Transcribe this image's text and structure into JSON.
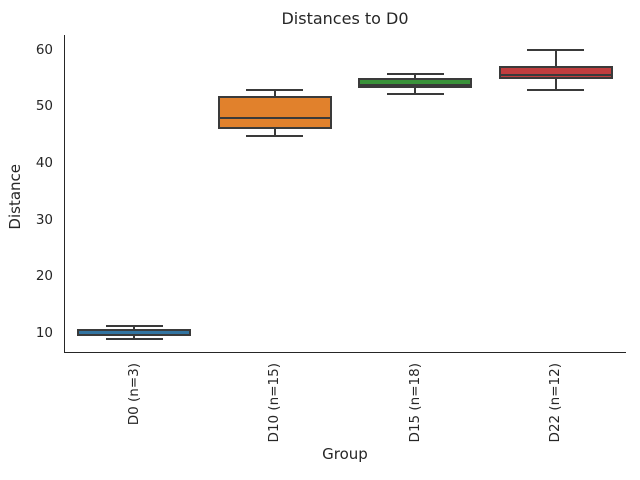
{
  "chart_data": {
    "type": "box",
    "title": "Distances to D0",
    "xlabel": "Group",
    "ylabel": "Distance",
    "ylim": [
      6.5,
      62.7
    ],
    "yticks": [
      10,
      20,
      30,
      40,
      50,
      60
    ],
    "grid": false,
    "legend": "none",
    "categories": [
      "D0 (n=3)",
      "D10 (n=15)",
      "D15 (n=18)",
      "D22 (n=12)"
    ],
    "series": [
      {
        "name": "D0 (n=3)",
        "n": 3,
        "color": "#3274A1",
        "whisker_low": 9.0,
        "q1": 9.5,
        "median": 10.1,
        "q3": 10.7,
        "whisker_high": 11.3
      },
      {
        "name": "D10 (n=15)",
        "n": 15,
        "color": "#E1812C",
        "whisker_low": 44.8,
        "q1": 46.0,
        "median": 48.0,
        "q3": 51.9,
        "whisker_high": 52.9
      },
      {
        "name": "D15 (n=18)",
        "n": 18,
        "color": "#3A923A",
        "whisker_low": 52.3,
        "q1": 53.4,
        "median": 53.9,
        "q3": 55.1,
        "whisker_high": 55.8
      },
      {
        "name": "D22 (n=12)",
        "n": 12,
        "color": "#C03D3E",
        "whisker_low": 53.0,
        "q1": 54.9,
        "median": 55.7,
        "q3": 57.3,
        "whisker_high": 60.0
      }
    ],
    "colors": {
      "box_edge": "#3A3A3A",
      "spine": "#262626",
      "text": "#262626",
      "background": "#FFFFFF"
    }
  }
}
